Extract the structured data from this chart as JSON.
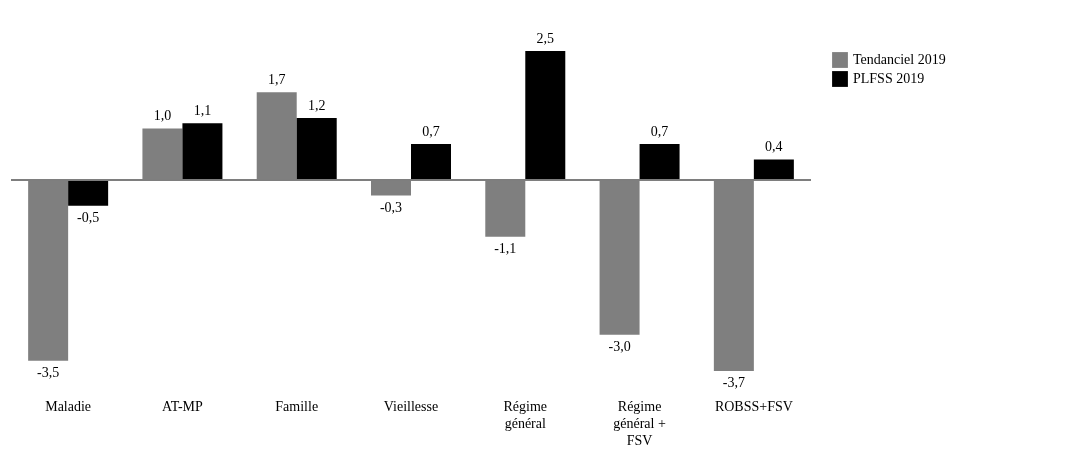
{
  "chart_data": {
    "type": "bar",
    "categories": [
      "Maladie",
      "AT-MP",
      "Famille",
      "Vieillesse",
      "Régime général",
      "Régime général + FSV",
      "ROBSS+FSV"
    ],
    "series": [
      {
        "name": "Tendanciel 2019",
        "color": "#7f7f7f",
        "values": [
          -3.5,
          1.0,
          1.7,
          -0.3,
          -1.1,
          -3.0,
          -3.7
        ],
        "value_labels": [
          "-3,5",
          "1,0",
          "1,7",
          "-0,3",
          "-1,1",
          "-3,0",
          "-3,7"
        ]
      },
      {
        "name": "PLFSS 2019",
        "color": "#000000",
        "values": [
          -0.5,
          1.1,
          1.2,
          0.7,
          2.5,
          0.7,
          0.4
        ],
        "value_labels": [
          "-0,5",
          "1,1",
          "1,2",
          "0,7",
          "2,5",
          "0,7",
          "0,4"
        ]
      }
    ],
    "legend": "right"
  }
}
